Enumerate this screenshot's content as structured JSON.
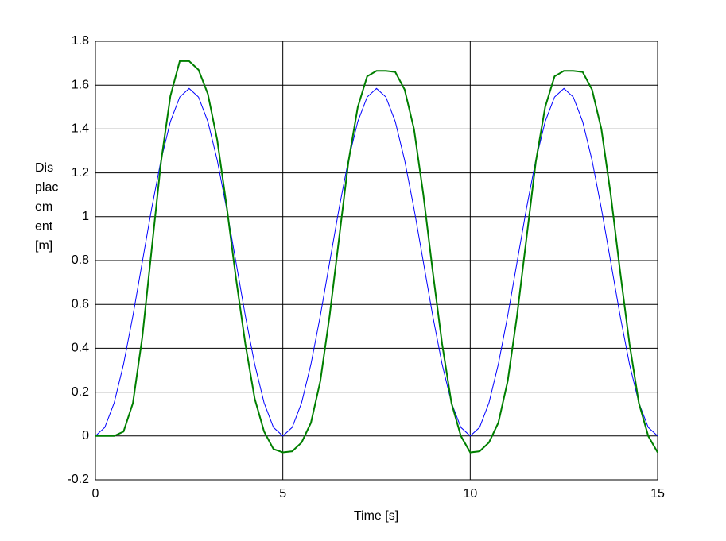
{
  "chart_data": {
    "type": "line",
    "xlabel": "Time [s]",
    "ylabel_lines": [
      "Dis",
      "plac",
      "em",
      "ent",
      "[m]"
    ],
    "x": [
      0,
      0.25,
      0.5,
      0.75,
      1,
      1.25,
      1.5,
      1.75,
      2,
      2.25,
      2.5,
      2.75,
      3,
      3.25,
      3.5,
      3.75,
      4,
      4.25,
      4.5,
      4.75,
      5,
      5.25,
      5.5,
      5.75,
      6,
      6.25,
      6.5,
      6.75,
      7,
      7.25,
      7.5,
      7.75,
      8,
      8.25,
      8.5,
      8.75,
      9,
      9.25,
      9.5,
      9.75,
      10,
      10.25,
      10.5,
      10.75,
      11,
      11.25,
      11.5,
      11.75,
      12,
      12.25,
      12.5,
      12.75,
      13,
      13.25,
      13.5,
      13.75,
      14,
      14.25,
      14.5,
      14.75,
      15
    ],
    "series": [
      {
        "color": "#0000ff",
        "width": 1,
        "values": [
          0,
          0.039,
          0.151,
          0.327,
          0.548,
          0.793,
          1.037,
          1.258,
          1.434,
          1.546,
          1.585,
          1.546,
          1.434,
          1.258,
          1.037,
          0.793,
          0.548,
          0.327,
          0.151,
          0.039,
          0,
          0.039,
          0.151,
          0.327,
          0.548,
          0.793,
          1.037,
          1.258,
          1.434,
          1.546,
          1.585,
          1.546,
          1.434,
          1.258,
          1.037,
          0.793,
          0.548,
          0.327,
          0.151,
          0.039,
          0,
          0.039,
          0.151,
          0.327,
          0.548,
          0.793,
          1.037,
          1.258,
          1.434,
          1.546,
          1.585,
          1.546,
          1.434,
          1.258,
          1.037,
          0.793,
          0.548,
          0.327,
          0.151,
          0.039,
          0
        ]
      },
      {
        "color": "#007f00",
        "width": 2,
        "values": [
          0,
          0,
          0,
          0.02,
          0.15,
          0.45,
          0.85,
          1.25,
          1.55,
          1.71,
          1.71,
          1.67,
          1.56,
          1.35,
          1.05,
          0.72,
          0.42,
          0.17,
          0.02,
          -0.06,
          -0.075,
          -0.07,
          -0.03,
          0.06,
          0.25,
          0.55,
          0.9,
          1.25,
          1.5,
          1.64,
          1.665,
          1.665,
          1.66,
          1.58,
          1.4,
          1.1,
          0.75,
          0.42,
          0.15,
          0,
          -0.075,
          -0.07,
          -0.03,
          0.06,
          0.25,
          0.55,
          0.9,
          1.25,
          1.5,
          1.64,
          1.665,
          1.665,
          1.66,
          1.58,
          1.4,
          1.1,
          0.75,
          0.42,
          0.15,
          0,
          -0.075
        ]
      }
    ],
    "xlim": [
      0,
      15
    ],
    "xticks": [
      0,
      5,
      10,
      15
    ],
    "ylim": [
      -0.2,
      1.8
    ],
    "yticks": [
      -0.2,
      0,
      0.2,
      0.4,
      0.6,
      0.8,
      1,
      1.2,
      1.4,
      1.6,
      1.8
    ],
    "grid": true
  }
}
